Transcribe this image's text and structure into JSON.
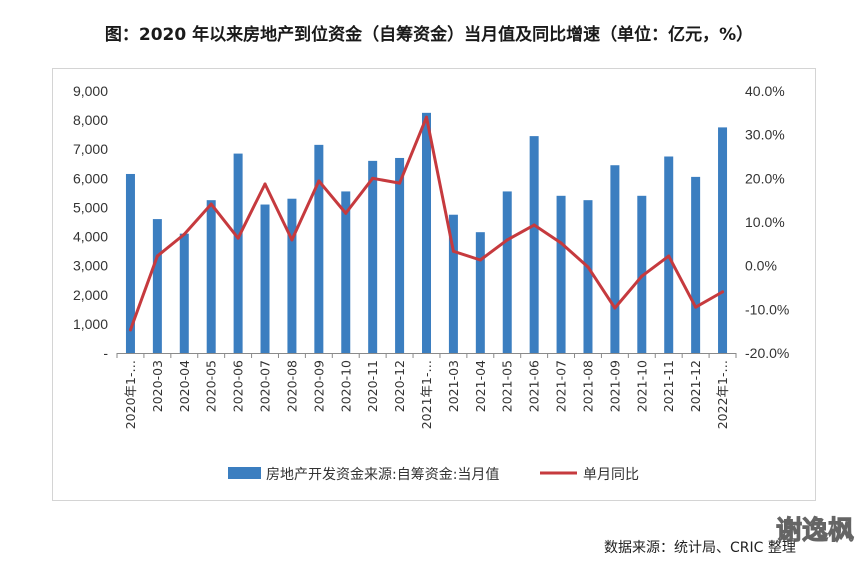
{
  "watermark": "谢逸枫",
  "chart_data": {
    "type": "bar",
    "title": "图：2020 年以来房地产到位资金（自筹资金）当月值及同比增速（单位：亿元，%）",
    "source": "数据来源：统计局、CRIC 整理",
    "categories": [
      "2020年1-…",
      "2020-03",
      "2020-04",
      "2020-05",
      "2020-06",
      "2020-07",
      "2020-08",
      "2020-09",
      "2020-10",
      "2020-11",
      "2020-12",
      "2021年1-…",
      "2021-03",
      "2021-04",
      "2021-05",
      "2021-06",
      "2021-07",
      "2021-08",
      "2021-09",
      "2021-10",
      "2021-11",
      "2021-12",
      "2022年1-…"
    ],
    "series": [
      {
        "name": "房地产开发资金来源:自筹资金:当月值",
        "type": "bar",
        "axis": "left",
        "color": "#3b7ec0",
        "values": [
          6150,
          4600,
          4100,
          5250,
          6850,
          5100,
          5300,
          7150,
          5550,
          6600,
          6700,
          8250,
          4750,
          4150,
          5550,
          7450,
          5400,
          5250,
          6450,
          5400,
          6750,
          6050,
          7750
        ]
      },
      {
        "name": "单月同比",
        "type": "line",
        "axis": "right",
        "color": "#c63a3e",
        "values": [
          -14.7,
          2.2,
          7.2,
          14.1,
          6.3,
          18.7,
          5.9,
          19.4,
          12.0,
          20.0,
          18.9,
          34.0,
          3.3,
          1.3,
          5.9,
          9.3,
          5.2,
          -0.3,
          -9.7,
          -2.4,
          2.2,
          -9.5,
          -6.0
        ]
      }
    ],
    "y_left": {
      "lim": [
        0,
        9000
      ],
      "ticks": [
        0,
        1000,
        2000,
        3000,
        4000,
        5000,
        6000,
        7000,
        8000,
        9000
      ],
      "tick_labels": [
        "-",
        "1,000",
        "2,000",
        "3,000",
        "4,000",
        "5,000",
        "6,000",
        "7,000",
        "8,000",
        "9,000"
      ]
    },
    "y_right": {
      "lim": [
        -20,
        40
      ],
      "ticks": [
        -20,
        -10,
        0,
        10,
        20,
        30,
        40
      ],
      "tick_labels": [
        "-20.0%",
        "-10.0%",
        "0.0%",
        "10.0%",
        "20.0%",
        "30.0%",
        "40.0%"
      ]
    },
    "grid": false,
    "legend": "bottom"
  }
}
